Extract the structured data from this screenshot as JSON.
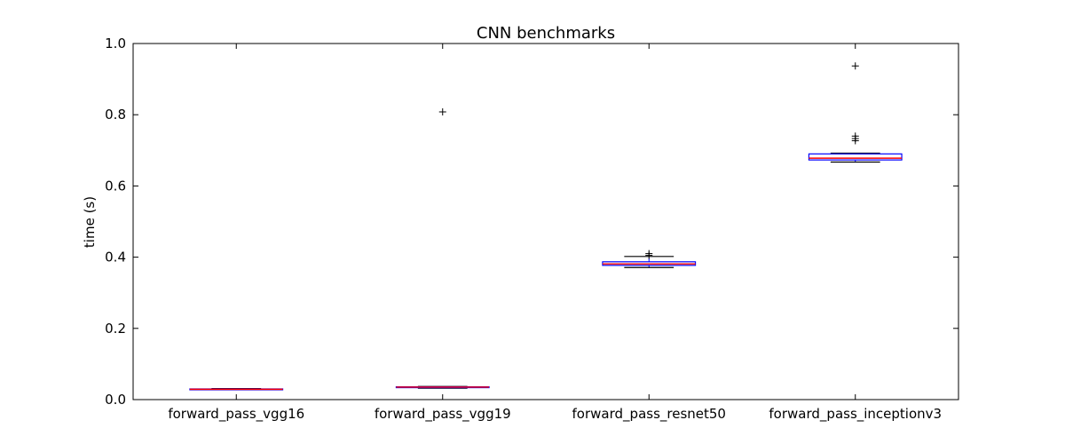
{
  "chart_data": {
    "type": "box",
    "title": "CNN benchmarks",
    "xlabel": "",
    "ylabel": "time (s)",
    "ylim": [
      0.0,
      1.0
    ],
    "yticks": [
      "0.0",
      "0.2",
      "0.4",
      "0.6",
      "0.8",
      "1.0"
    ],
    "grid": false,
    "categories": [
      "forward_pass_vgg16",
      "forward_pass_vgg19",
      "forward_pass_resnet50",
      "forward_pass_inceptionv3"
    ],
    "boxes": [
      {
        "category": "forward_pass_vgg16",
        "whisker_low": 0.028,
        "q1": 0.028,
        "median": 0.029,
        "q3": 0.03,
        "whisker_high": 0.031,
        "outliers": []
      },
      {
        "category": "forward_pass_vgg19",
        "whisker_low": 0.032,
        "q1": 0.034,
        "median": 0.035,
        "q3": 0.036,
        "whisker_high": 0.037,
        "outliers": [
          0.808
        ]
      },
      {
        "category": "forward_pass_resnet50",
        "whisker_low": 0.371,
        "q1": 0.377,
        "median": 0.381,
        "q3": 0.387,
        "whisker_high": 0.402,
        "outliers": [
          0.405,
          0.41
        ]
      },
      {
        "category": "forward_pass_inceptionv3",
        "whisker_low": 0.667,
        "q1": 0.673,
        "median": 0.678,
        "q3": 0.69,
        "whisker_high": 0.692,
        "outliers": [
          0.727,
          0.733,
          0.74,
          0.937
        ]
      }
    ],
    "colors": {
      "box": "#0000ff",
      "median": "#ff0000",
      "whisker": "#000000",
      "outlier": "#000000"
    }
  }
}
